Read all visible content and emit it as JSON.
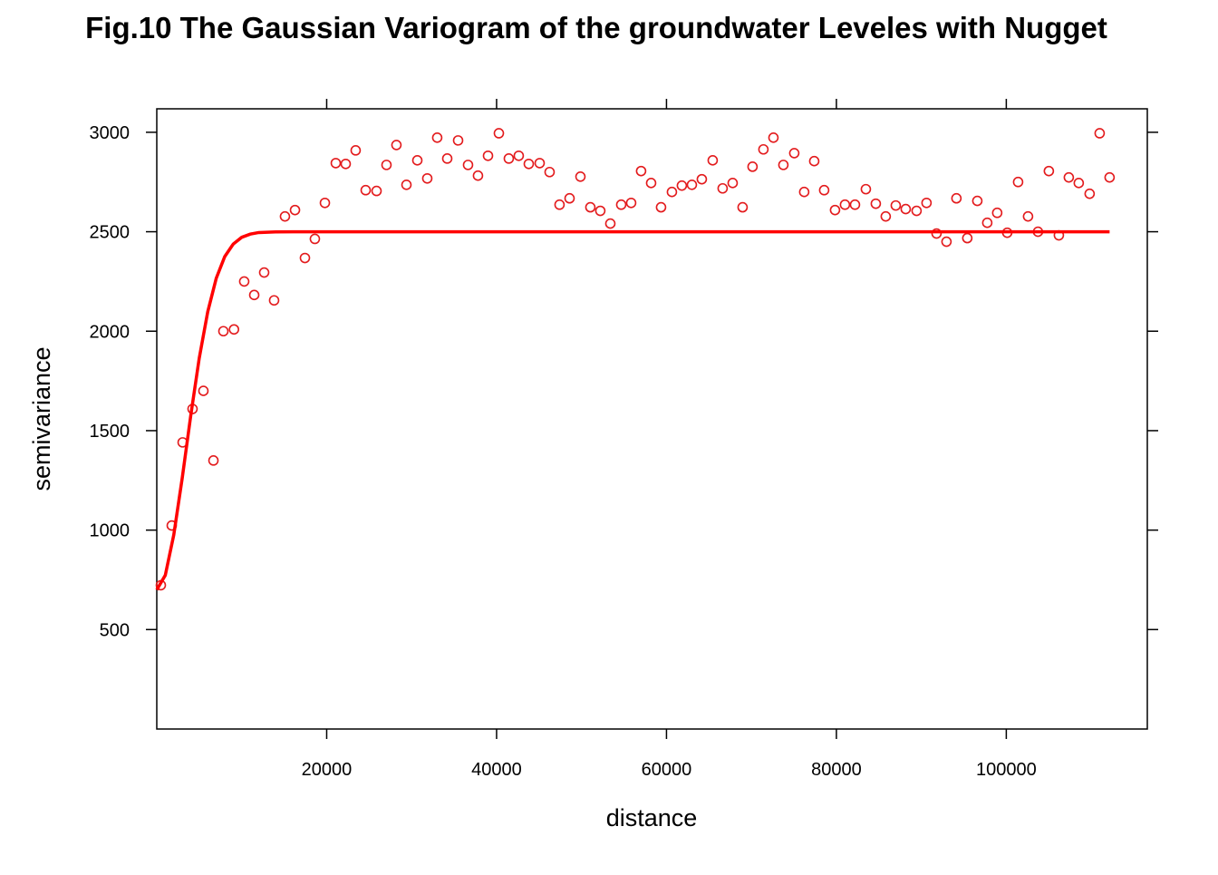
{
  "chart_data": {
    "type": "scatter",
    "title": "Fig.10 The Gaussian Variogram of the groundwater Leveles with Nugget",
    "xlabel": "distance",
    "ylabel": "semivariance",
    "xlim": [
      0,
      116600
    ],
    "ylim": [
      0,
      3118
    ],
    "xticks": [
      20000,
      40000,
      60000,
      80000,
      100000
    ],
    "yticks": [
      500,
      1000,
      1500,
      2000,
      2500,
      3000
    ],
    "series": [
      {
        "type": "scatter",
        "color": "#e31a1c",
        "x": [
          480,
          1760,
          3040,
          4210,
          5490,
          6670,
          7840,
          9090,
          10290,
          11470,
          12640,
          13810,
          15090,
          16270,
          17440,
          18610,
          19790,
          21070,
          22240,
          23410,
          24590,
          25870,
          27040,
          28210,
          29390,
          30670,
          31840,
          33010,
          34190,
          35470,
          36640,
          37810,
          38990,
          40270,
          41440,
          42610,
          43790,
          45070,
          46240,
          47410,
          48590,
          49870,
          51040,
          52210,
          53390,
          54670,
          55840,
          57010,
          58190,
          59360,
          60640,
          61810,
          62990,
          64160,
          65440,
          66610,
          67790,
          68960,
          70130,
          71410,
          72590,
          73760,
          75040,
          76210,
          77390,
          78560,
          79840,
          81010,
          82190,
          83470,
          84640,
          85810,
          86990,
          88160,
          89440,
          90610,
          91790,
          92960,
          94130,
          95410,
          96590,
          97760,
          98930,
          100110,
          101390,
          102560,
          103730,
          105010,
          106190,
          107360,
          108530,
          109810,
          110990,
          112160
        ],
        "values": [
          723,
          1023,
          1441,
          1609,
          1700,
          1350,
          2000,
          2009,
          2250,
          2182,
          2295,
          2155,
          2577,
          2609,
          2368,
          2464,
          2645,
          2845,
          2841,
          2909,
          2709,
          2705,
          2836,
          2936,
          2736,
          2859,
          2768,
          2973,
          2868,
          2959,
          2836,
          2782,
          2882,
          2995,
          2868,
          2882,
          2841,
          2845,
          2800,
          2636,
          2668,
          2777,
          2623,
          2605,
          2541,
          2636,
          2645,
          2805,
          2745,
          2623,
          2700,
          2732,
          2736,
          2764,
          2859,
          2718,
          2745,
          2623,
          2827,
          2914,
          2973,
          2836,
          2895,
          2700,
          2855,
          2709,
          2609,
          2636,
          2636,
          2714,
          2641,
          2577,
          2632,
          2614,
          2605,
          2645,
          2491,
          2450,
          2668,
          2468,
          2655,
          2545,
          2595,
          2495,
          2750,
          2577,
          2500,
          2805,
          2482,
          2773,
          2745,
          2691,
          2995,
          2773
        ]
      },
      {
        "type": "line",
        "color": "#ff0000",
        "x": [
          0,
          1000,
          2000,
          3000,
          4000,
          5000,
          6000,
          7000,
          8000,
          9000,
          10000,
          11000,
          12000,
          14000,
          16000,
          112160
        ],
        "values": [
          700,
          773,
          976,
          1263,
          1576,
          1865,
          2098,
          2266,
          2375,
          2438,
          2472,
          2488,
          2496,
          2499,
          2500,
          2500
        ]
      }
    ]
  }
}
